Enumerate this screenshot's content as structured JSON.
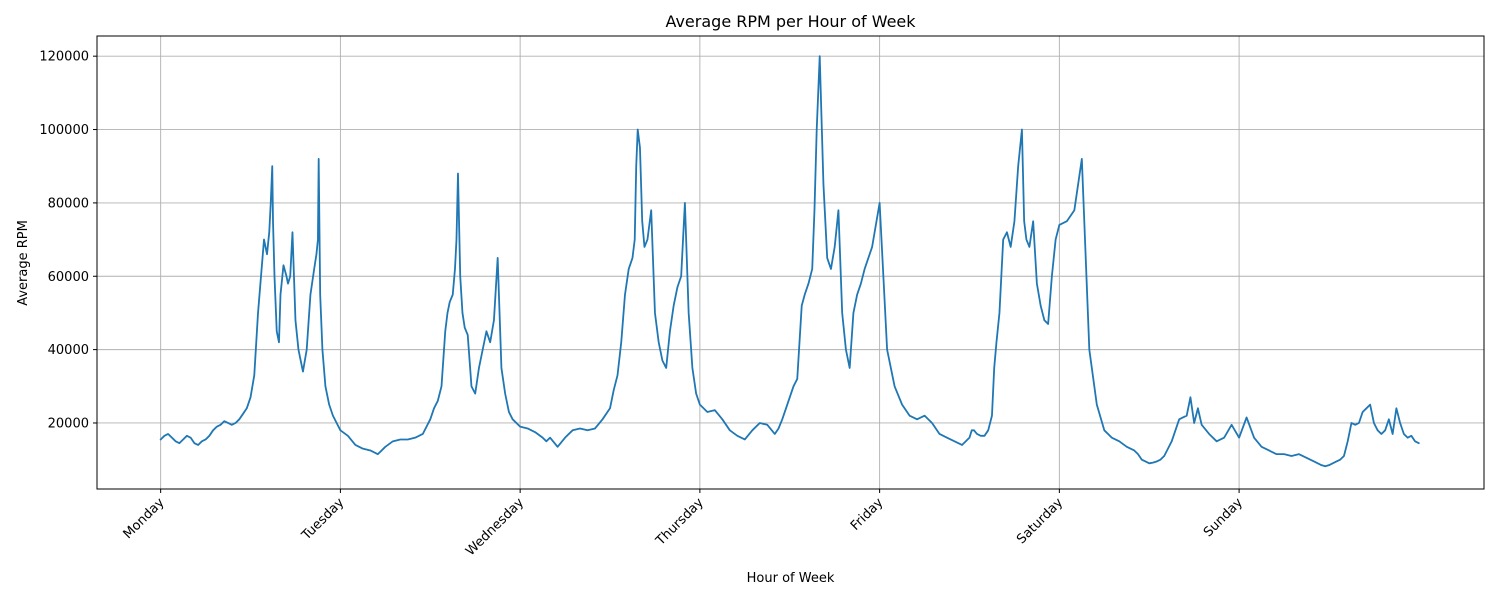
{
  "chart_data": {
    "type": "line",
    "title": "Average RPM per Hour of Week",
    "xlabel": "Hour of Week",
    "ylabel": "Average RPM",
    "x_ticks": [
      {
        "label": "Monday",
        "x": 0
      },
      {
        "label": "Tuesday",
        "x": 24
      },
      {
        "label": "Wednesday",
        "x": 48
      },
      {
        "label": "Thursday",
        "x": 72
      },
      {
        "label": "Friday",
        "x": 96
      },
      {
        "label": "Saturday",
        "x": 120
      },
      {
        "label": "Sunday",
        "x": 144
      }
    ],
    "y_ticks": [
      20000,
      40000,
      60000,
      80000,
      100000,
      120000
    ],
    "xlim": [
      -8.5,
      176.7
    ],
    "ylim": [
      2000,
      125500
    ],
    "grid": true,
    "series": [
      {
        "color": "#1f77b4",
        "x": [
          0,
          0.5,
          1,
          1.5,
          2,
          2.5,
          3,
          3.5,
          4,
          4.5,
          5,
          5.5,
          6,
          6.5,
          7,
          7.5,
          8,
          8.5,
          9,
          9.5,
          10,
          10.5,
          11,
          11.5,
          12,
          12.5,
          13,
          13.4,
          13.8,
          14.2,
          14.5,
          14.7,
          14.9,
          15,
          15.2,
          15.5,
          15.8,
          16,
          16.4,
          16.8,
          17,
          17.3,
          17.6,
          18,
          18.4,
          18.8,
          19,
          19.5,
          20,
          20.5,
          20.8,
          21,
          21.1,
          21.3,
          21.6,
          22,
          22.5,
          23,
          23.5,
          24,
          25,
          26,
          27,
          28,
          29,
          30,
          31,
          32,
          33,
          34,
          35,
          36,
          36.5,
          37,
          37.5,
          38,
          38.3,
          38.6,
          39,
          39.3,
          39.5,
          39.7,
          40,
          40.3,
          40.6,
          41,
          41.5,
          42,
          42.5,
          43,
          43.5,
          44,
          44.5,
          45,
          45.5,
          46,
          46.5,
          47,
          48,
          49,
          50,
          51,
          51.5,
          52,
          53,
          54,
          55,
          56,
          57,
          58,
          59,
          60,
          60.5,
          61,
          61.5,
          62,
          62.5,
          63,
          63.3,
          63.5,
          63.7,
          64,
          64.3,
          64.6,
          65,
          65.5,
          66,
          66.5,
          67,
          67.5,
          68,
          68.5,
          69,
          69.5,
          70,
          70.5,
          71,
          71.5,
          72,
          73,
          74,
          75,
          76,
          77,
          78,
          79,
          80,
          81,
          82,
          82.5,
          83,
          83.5,
          84,
          84.5,
          85,
          85.3,
          85.6,
          86,
          86.5,
          87,
          87.3,
          87.6,
          88,
          88.5,
          89,
          89.5,
          90,
          90.5,
          91,
          91.5,
          92,
          92.5,
          93,
          93.5,
          94,
          95,
          96,
          97,
          98,
          99,
          100,
          101,
          102,
          103,
          104,
          105,
          106,
          107,
          108,
          108.3,
          108.6,
          109,
          109.5,
          110,
          110.5,
          111,
          111.3,
          111.6,
          112,
          112.5,
          113,
          113.5,
          114,
          114.5,
          115,
          115.3,
          115.6,
          116,
          116.5,
          117,
          117.5,
          118,
          118.5,
          119,
          119.5,
          120,
          121,
          122,
          123,
          124,
          125,
          126,
          127,
          128,
          129,
          130,
          130.5,
          131,
          131.5,
          132,
          132.5,
          133,
          133.5,
          134,
          134.5,
          135,
          135.5,
          136,
          136.5,
          137,
          137.5,
          138,
          138.5,
          139,
          140,
          141,
          142,
          143,
          144,
          145,
          146,
          147,
          148,
          149,
          150,
          151,
          152,
          153,
          154,
          154.5,
          155,
          155.5,
          156,
          156.5,
          157,
          157.5,
          158,
          158.5,
          159,
          159.5,
          160,
          160.5,
          161,
          161.5,
          162,
          162.5,
          163,
          163.5,
          164,
          164.5,
          165,
          165.5,
          166,
          166.5,
          167,
          167.5,
          168
        ],
        "y": [
          15500,
          16500,
          17000,
          16000,
          15000,
          14500,
          15500,
          16500,
          16000,
          14500,
          14000,
          15000,
          15500,
          16500,
          18000,
          19000,
          19500,
          20500,
          20000,
          19500,
          20000,
          21000,
          22500,
          24000,
          27000,
          33000,
          50000,
          60000,
          70000,
          66000,
          72000,
          80000,
          90000,
          75000,
          60000,
          45000,
          42000,
          55000,
          63000,
          60000,
          58000,
          60000,
          72000,
          48000,
          40000,
          36000,
          34000,
          40000,
          55000,
          62000,
          66000,
          70000,
          92000,
          55000,
          40000,
          30000,
          25000,
          22000,
          20000,
          18000,
          16500,
          14000,
          13000,
          12500,
          11500,
          13500,
          15000,
          15500,
          15500,
          16000,
          17000,
          21000,
          24000,
          26000,
          30000,
          45000,
          50000,
          53000,
          55000,
          62000,
          70000,
          88000,
          60000,
          50000,
          46000,
          44000,
          30000,
          28000,
          35000,
          40000,
          45000,
          42000,
          48000,
          65000,
          35000,
          28000,
          23000,
          21000,
          19000,
          18500,
          17500,
          16000,
          15000,
          16000,
          13500,
          16000,
          18000,
          18500,
          18000,
          18500,
          21000,
          24000,
          29000,
          33000,
          42000,
          55000,
          62000,
          65000,
          70000,
          90000,
          100000,
          95000,
          75000,
          68000,
          70000,
          78000,
          50000,
          42000,
          37000,
          35000,
          45000,
          52000,
          57000,
          60000,
          80000,
          50000,
          35000,
          28000,
          25000,
          23000,
          23500,
          21000,
          18000,
          16500,
          15500,
          18000,
          20000,
          19500,
          17000,
          18500,
          21000,
          24000,
          27000,
          30000,
          32000,
          42000,
          52000,
          55000,
          58000,
          62000,
          78000,
          100000,
          120000,
          85000,
          65000,
          62000,
          68000,
          78000,
          50000,
          40000,
          35000,
          50000,
          55000,
          58000,
          62000,
          68000,
          80000,
          40000,
          30000,
          25000,
          22000,
          21000,
          22000,
          20000,
          17000,
          16000,
          15000,
          14000,
          16000,
          18000,
          18000,
          17000,
          16500,
          16500,
          18000,
          22000,
          35000,
          42000,
          50000,
          70000,
          72000,
          68000,
          75000,
          90000,
          100000,
          75000,
          70000,
          68000,
          75000,
          58000,
          52000,
          48000,
          47000,
          60000,
          70000,
          74000,
          75000,
          78000,
          92000,
          40000,
          25000,
          18000,
          16000,
          15000,
          13500,
          12500,
          11500,
          10000,
          9500,
          9000,
          9200,
          9500,
          10000,
          11000,
          13000,
          15000,
          18000,
          21000,
          21500,
          22000,
          27000,
          20000,
          24000,
          19500,
          17000,
          15000,
          16000,
          19500,
          16000,
          21500,
          16000,
          13500,
          12500,
          11500,
          11500,
          11000,
          11500,
          10500,
          9500,
          9000,
          8500,
          8200,
          8500,
          9000,
          9500,
          10000,
          11000,
          15000,
          20000,
          19500,
          20000,
          23000,
          24000,
          25000,
          20000,
          18000,
          17000,
          18000,
          21000,
          17000,
          24000,
          20000,
          17000,
          16000,
          16500,
          15000,
          14500
        ]
      }
    ]
  }
}
